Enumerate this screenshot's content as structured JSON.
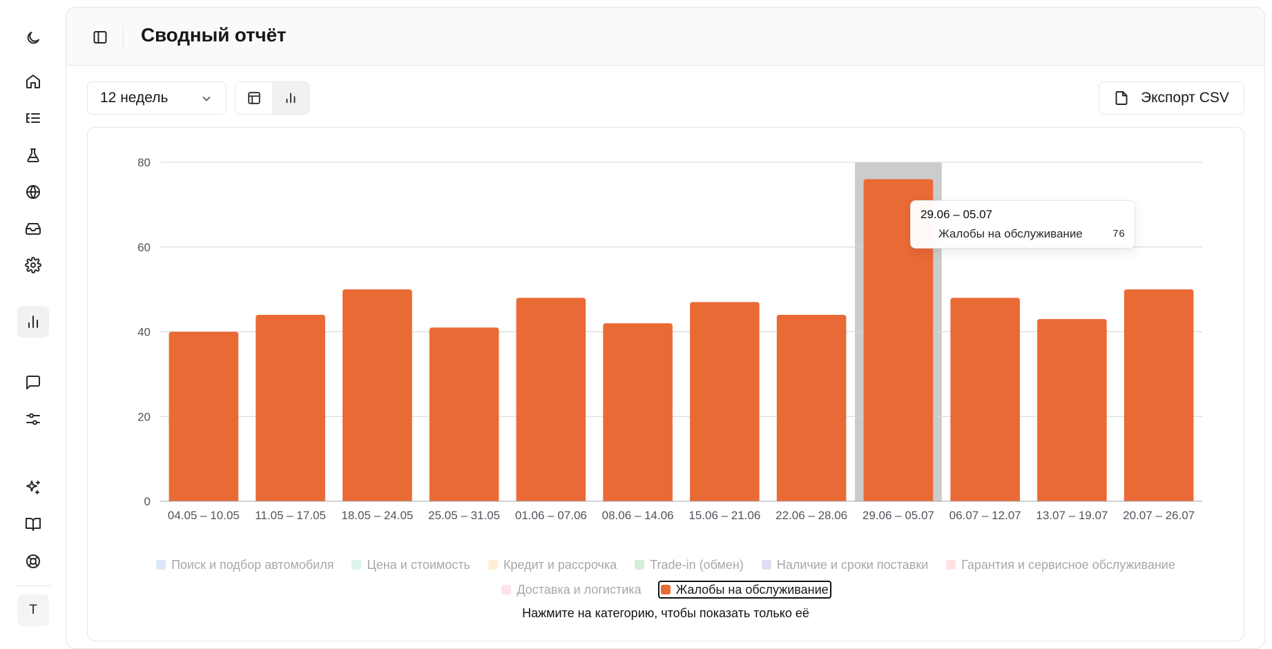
{
  "header": {
    "title": "Сводный отчёт"
  },
  "toolbar": {
    "period_value": "12 недель",
    "export_label": "Экспорт CSV"
  },
  "sidebar": {
    "items": [
      {
        "name": "theme-toggle",
        "icon": "moon-icon"
      },
      {
        "name": "home",
        "icon": "home-icon"
      },
      {
        "name": "list",
        "icon": "list-tree-icon"
      },
      {
        "name": "lab",
        "icon": "flask-icon"
      },
      {
        "name": "globe",
        "icon": "globe-icon"
      },
      {
        "name": "inbox",
        "icon": "inbox-icon"
      },
      {
        "name": "settings",
        "icon": "gear-icon"
      },
      {
        "name": "reports",
        "icon": "bar-chart-icon",
        "active": true
      },
      {
        "name": "messages",
        "icon": "message-square-icon"
      },
      {
        "name": "filters",
        "icon": "sliders-icon"
      },
      {
        "name": "ai",
        "icon": "sparkles-icon"
      },
      {
        "name": "docs",
        "icon": "book-open-icon"
      },
      {
        "name": "help",
        "icon": "life-buoy-icon"
      }
    ],
    "avatar_initial": "T"
  },
  "tooltip": {
    "title": "29.06 – 05.07",
    "series": "Жалобы на обслуживание",
    "value": "76"
  },
  "legend": {
    "items": [
      {
        "label": "Поиск и подбор автомобиля",
        "color": "#a3c4f3",
        "active": false
      },
      {
        "label": "Цена и стоимость",
        "color": "#a8e6cf",
        "active": false
      },
      {
        "label": "Кредит и рассрочка",
        "color": "#ffd08a",
        "active": false
      },
      {
        "label": "Trade-in (обмен)",
        "color": "#8fd19e",
        "active": false
      },
      {
        "label": "Наличие и сроки поставки",
        "color": "#b5a8e6",
        "active": false
      },
      {
        "label": "Гарантия и сервисное обслуживание",
        "color": "#ffb3b3",
        "active": false
      },
      {
        "label": "Доставка и логистика",
        "color": "#f7b6d2",
        "active": false
      },
      {
        "label": "Жалобы на обслуживание",
        "color": "#e96a35",
        "active": true
      }
    ],
    "hint": "Нажмите на категорию, чтобы показать только её"
  },
  "chart_data": {
    "type": "bar",
    "categories": [
      "04.05 – 10.05",
      "11.05 – 17.05",
      "18.05 – 24.05",
      "25.05 – 31.05",
      "01.06 – 07.06",
      "08.06 – 14.06",
      "15.06 – 21.06",
      "22.06 – 28.06",
      "29.06 – 05.07",
      "06.07 – 12.07",
      "13.07 – 19.07",
      "20.07 – 26.07"
    ],
    "series": [
      {
        "name": "Жалобы на обслуживание",
        "color": "#e96a35",
        "values": [
          40,
          44,
          50,
          41,
          48,
          42,
          47,
          44,
          76,
          48,
          43,
          50
        ]
      }
    ],
    "y_ticks": [
      0,
      20,
      40,
      60,
      80
    ],
    "ylim": [
      0,
      80
    ],
    "highlighted_category": "29.06 – 05.07",
    "grid": true,
    "legend_position": "bottom"
  }
}
